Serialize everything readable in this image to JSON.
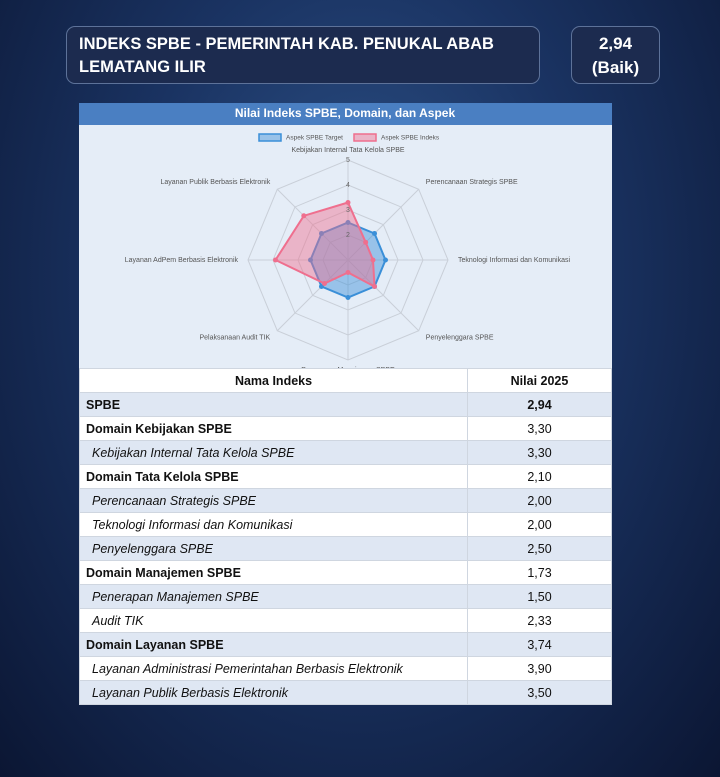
{
  "header": {
    "title": "INDEKS SPBE - PEMERINTAH KAB. PENUKAL ABAB LEMATANG ILIR",
    "score": "2,94",
    "grade": "(Baik)"
  },
  "chart_data": {
    "type": "radar",
    "title": "Nilai Indeks SPBE, Domain, dan Aspek",
    "categories": [
      "Kebijakan Internal Tata Kelola SPBE",
      "Perencanaan Strategis SPBE",
      "Teknologi Informasi dan Komunikasi",
      "Penyelenggara SPBE",
      "Penerapan Manajemen SPBE",
      "Pelaksanaan Audit TIK",
      "Layanan AdPem Berbasis Elektronik",
      "Layanan Publik Berbasis Elektronik"
    ],
    "series": [
      {
        "name": "Aspek SPBE Target",
        "color": "#3a8fd8",
        "values": [
          2.5,
          2.5,
          2.5,
          2.5,
          2.5,
          2.5,
          2.5,
          2.5
        ]
      },
      {
        "name": "Aspek SPBE Indeks",
        "color": "#ef6f8e",
        "values": [
          3.3,
          2,
          2,
          2.5,
          1.5,
          2.33,
          3.9,
          3.5
        ]
      }
    ],
    "rlim": [
      1,
      5
    ],
    "rticks": [
      2,
      3,
      4,
      5
    ]
  },
  "table": {
    "columns": [
      "Nama Indeks",
      "Nilai 2025"
    ],
    "rows": [
      [
        "SPBE",
        "2,94"
      ],
      [
        "Domain Kebijakan SPBE",
        "3,30"
      ],
      [
        "Kebijakan Internal Tata Kelola SPBE",
        "3,30"
      ],
      [
        "Domain Tata Kelola SPBE",
        "2,10"
      ],
      [
        "Perencanaan Strategis SPBE",
        "2,00"
      ],
      [
        "Teknologi Informasi dan Komunikasi",
        "2,00"
      ],
      [
        "Penyelenggara SPBE",
        "2,50"
      ],
      [
        "Domain Manajemen SPBE",
        "1,73"
      ],
      [
        "Penerapan Manajemen SPBE",
        "1,50"
      ],
      [
        "Audit TIK",
        "2,33"
      ],
      [
        "Domain Layanan SPBE",
        "3,74"
      ],
      [
        "Layanan Administrasi Pemerintahan Berbasis Elektronik",
        "3,90"
      ],
      [
        "Layanan Publik Berbasis Elektronik",
        "3,50"
      ]
    ]
  }
}
